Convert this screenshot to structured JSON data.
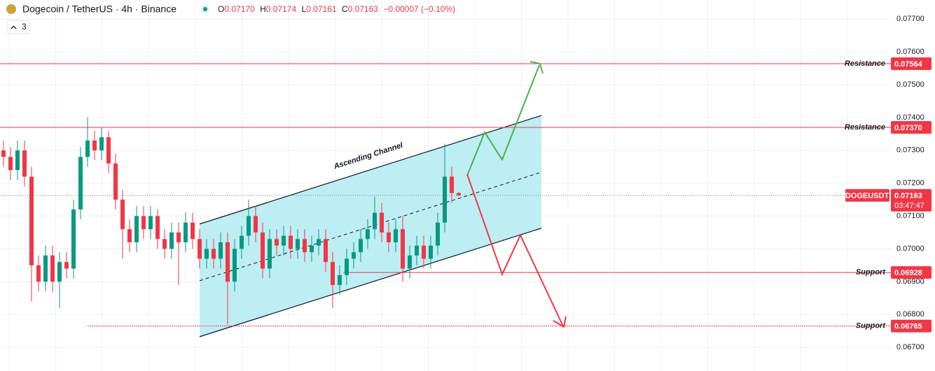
{
  "chart_data": {
    "type": "candlestick",
    "title": "Dogecoin / TetherUS · 4h · Binance",
    "indicator_count": "3",
    "legend": {
      "open_label": "O",
      "open": "0.07170",
      "high_label": "H",
      "high": "0.07174",
      "low_label": "L",
      "low": "0.07161",
      "close_label": "C",
      "close": "0.07163",
      "change": "−0.00007 (−0.10%)"
    },
    "up_color": "#089981",
    "down_color": "#f23645",
    "ylim": [
      0.06628,
      0.07758
    ],
    "yticks": [
      {
        "value": 0.067,
        "label": "0.06700"
      },
      {
        "value": 0.068,
        "label": "0.06800"
      },
      {
        "value": 0.069,
        "label": "0.06900"
      },
      {
        "value": 0.07,
        "label": "0.07000"
      },
      {
        "value": 0.071,
        "label": "0.07100"
      },
      {
        "value": 0.072,
        "label": "0.07200"
      },
      {
        "value": 0.073,
        "label": "0.07300"
      },
      {
        "value": 0.074,
        "label": "0.07400"
      },
      {
        "value": 0.075,
        "label": "0.07500"
      },
      {
        "value": 0.076,
        "label": "0.07600"
      },
      {
        "value": 0.077,
        "label": "0.07700"
      }
    ],
    "grid": true,
    "series": {
      "open": [
        0.073,
        0.0728,
        0.0724,
        0.073,
        0.0722,
        0.0695,
        0.069,
        0.0698,
        0.069,
        0.0696,
        0.0694,
        0.0712,
        0.0728,
        0.0733,
        0.073,
        0.0734,
        0.0726,
        0.0715,
        0.0706,
        0.0702,
        0.071,
        0.0706,
        0.071,
        0.0703,
        0.07,
        0.0705,
        0.0702,
        0.0708,
        0.0703,
        0.0697,
        0.07,
        0.0697,
        0.0702,
        0.069,
        0.07,
        0.0704,
        0.071,
        0.0705,
        0.0694,
        0.0703,
        0.0701,
        0.0704,
        0.07,
        0.0703,
        0.0699,
        0.0701,
        0.0703,
        0.0696,
        0.0689,
        0.0692,
        0.0697,
        0.0699,
        0.0703,
        0.0706,
        0.0711,
        0.0705,
        0.0702,
        0.0706,
        0.0694,
        0.0698,
        0.0701,
        0.0697,
        0.0701,
        0.0708,
        0.0722,
        0.0717
      ],
      "high": [
        0.0733,
        0.0731,
        0.0733,
        0.0733,
        0.0725,
        0.0698,
        0.0701,
        0.0701,
        0.0699,
        0.0699,
        0.0715,
        0.0731,
        0.074,
        0.0736,
        0.0737,
        0.0736,
        0.0729,
        0.0718,
        0.0709,
        0.0713,
        0.0713,
        0.0713,
        0.0712,
        0.0706,
        0.0708,
        0.0708,
        0.0711,
        0.0711,
        0.0706,
        0.0703,
        0.0703,
        0.0705,
        0.0705,
        0.0703,
        0.0707,
        0.0715,
        0.0713,
        0.0708,
        0.0706,
        0.0706,
        0.0707,
        0.0707,
        0.0706,
        0.0706,
        0.0704,
        0.0706,
        0.0706,
        0.0699,
        0.0695,
        0.07,
        0.0702,
        0.0706,
        0.0709,
        0.0716,
        0.0714,
        0.0708,
        0.0709,
        0.071,
        0.0701,
        0.0704,
        0.0704,
        0.0704,
        0.0711,
        0.0732,
        0.0725,
        0.07174
      ],
      "low": [
        0.0725,
        0.0721,
        0.0721,
        0.0719,
        0.0684,
        0.0687,
        0.0687,
        0.0687,
        0.0682,
        0.0691,
        0.0691,
        0.0709,
        0.0725,
        0.0727,
        0.0727,
        0.0723,
        0.0712,
        0.0697,
        0.0699,
        0.0699,
        0.0703,
        0.0703,
        0.07,
        0.0697,
        0.0697,
        0.0689,
        0.0699,
        0.07,
        0.0694,
        0.0694,
        0.0694,
        0.0694,
        0.0677,
        0.0687,
        0.0697,
        0.0701,
        0.0702,
        0.0691,
        0.0691,
        0.0698,
        0.0698,
        0.0697,
        0.0697,
        0.0696,
        0.0696,
        0.0698,
        0.0693,
        0.0682,
        0.0686,
        0.0689,
        0.0694,
        0.0696,
        0.07,
        0.0703,
        0.0702,
        0.0699,
        0.0699,
        0.069,
        0.0691,
        0.0695,
        0.0694,
        0.0694,
        0.0698,
        0.0705,
        0.0714,
        0.07161
      ],
      "close": [
        0.0728,
        0.0724,
        0.073,
        0.0722,
        0.0695,
        0.069,
        0.0698,
        0.069,
        0.0696,
        0.0694,
        0.0712,
        0.0728,
        0.0733,
        0.073,
        0.0734,
        0.0726,
        0.0715,
        0.0706,
        0.0702,
        0.071,
        0.0706,
        0.071,
        0.0703,
        0.07,
        0.0705,
        0.0702,
        0.0708,
        0.0703,
        0.0697,
        0.07,
        0.0697,
        0.0702,
        0.069,
        0.07,
        0.0704,
        0.071,
        0.0705,
        0.0694,
        0.0703,
        0.0701,
        0.0704,
        0.07,
        0.0703,
        0.0699,
        0.0701,
        0.0703,
        0.0696,
        0.0689,
        0.0692,
        0.0697,
        0.0699,
        0.0703,
        0.0706,
        0.0711,
        0.0705,
        0.0702,
        0.0706,
        0.0694,
        0.0698,
        0.0701,
        0.0697,
        0.0701,
        0.0708,
        0.0722,
        0.0717,
        0.07163
      ]
    },
    "levels": [
      {
        "name": "Resistance",
        "value": 0.07564,
        "value_label": "0.07564",
        "color": "#f23645"
      },
      {
        "name": "Resistance",
        "value": 0.0737,
        "value_label": "0.07370",
        "color": "#f23645"
      },
      {
        "name": "Support",
        "value": 0.06928,
        "value_label": "0.06928",
        "color": "#f23645"
      },
      {
        "name": "Support",
        "value": 0.06765,
        "value_label": "0.06765",
        "color": "#f23645"
      }
    ],
    "last_price": {
      "symbol": "DOGEUSDT",
      "value": 0.07163,
      "value_label": "0.07163",
      "countdown": "03:47:47",
      "color": "#f23645"
    },
    "annotation": "Ascending Channel"
  }
}
